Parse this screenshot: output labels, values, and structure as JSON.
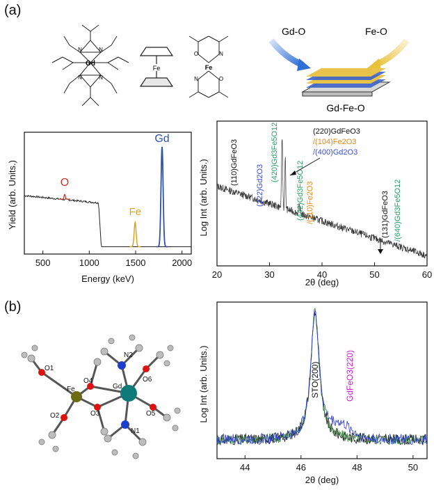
{
  "panels": {
    "a": "(a)",
    "b": "(b)"
  },
  "precursors": {
    "gd_center": "Gd",
    "fe_center": "Fe",
    "fe2_center": "Fe",
    "o_label": "O",
    "n_label": "N"
  },
  "ald_scheme": {
    "left_arrow": "Gd-O",
    "right_arrow": "Fe-O",
    "film": "Gd-Fe-O",
    "colors": {
      "gd": "#2f6fd6",
      "fe": "#e8c23a",
      "layer_blue": "#3e63c8",
      "layer_gold": "#e9c24a"
    }
  },
  "molecule": {
    "atoms": {
      "fe": "Fe",
      "gd": "Gd",
      "o1": "O1",
      "o2": "O2",
      "o3": "O3",
      "o4": "O4",
      "o5": "O5",
      "o6": "O6",
      "n1": "N1",
      "n2": "N2"
    }
  },
  "chart_data": [
    {
      "type": "line",
      "id": "rbs",
      "xlabel": "Energy (keV)",
      "ylabel": "Yield (arb. Units.)",
      "xlim": [
        300,
        2100
      ],
      "xticks": [
        500,
        1000,
        1500,
        2000
      ],
      "grid": false,
      "peaks": [
        {
          "label": "O",
          "energy": 735,
          "color": "#c0392b"
        },
        {
          "label": "Fe",
          "energy": 1495,
          "color": "#d9a521"
        },
        {
          "label": "Gd",
          "energy": 1785,
          "color": "#2d52a8"
        }
      ],
      "profile": {
        "plateau_start": 300,
        "plateau_end": 1100,
        "edge": 1110,
        "baseline_level": 0.06,
        "plateau_level": [
          0.48,
          0.42
        ],
        "fe_height": 0.2,
        "gd_height": 0.82
      }
    },
    {
      "type": "line",
      "id": "xrd_gdfeo3",
      "xlabel": "2θ (deg)",
      "ylabel": "Log Int (arb. Units.)",
      "xlim": [
        20,
        60
      ],
      "xticks": [
        20,
        30,
        40,
        50,
        60
      ],
      "grid": false,
      "main_peaks": [
        32.4,
        33.0
      ],
      "annotations": {
        "a110": "(110)GdFeO3",
        "a222": "(222)Gd2O3",
        "a420": "(420)Gd3Fe5O12",
        "a442": "(442)Gd3Fe5O12",
        "a110fe": "/(110)Fe2O3",
        "a220": "(220)GdFeO3",
        "a104": "/(104)Fe2O3",
        "a400": "/(400)Gd2O3",
        "a131": "(131)GdFeO3",
        "a640": "/(640)Gd3Fe5O12"
      },
      "colors": {
        "black": "#111111",
        "blue": "#3b4fd1",
        "green": "#2e9b6a",
        "orange": "#e08a1e"
      }
    },
    {
      "type": "line",
      "id": "xrd_sto",
      "xlabel": "2θ (deg)",
      "ylabel": "Log Int (arb. Units.)",
      "xlim": [
        43,
        50.5
      ],
      "xticks": [
        44,
        46,
        48,
        50
      ],
      "grid": false,
      "peak_position": 46.5,
      "annotations": {
        "sto": "STO(200)",
        "gdfeo3": "GdFeO3(220)"
      },
      "series": [
        {
          "color": "#111111"
        },
        {
          "color": "#2e7d32"
        },
        {
          "color": "#2a3bd1"
        }
      ],
      "shoulder_position": 47.4
    }
  ]
}
